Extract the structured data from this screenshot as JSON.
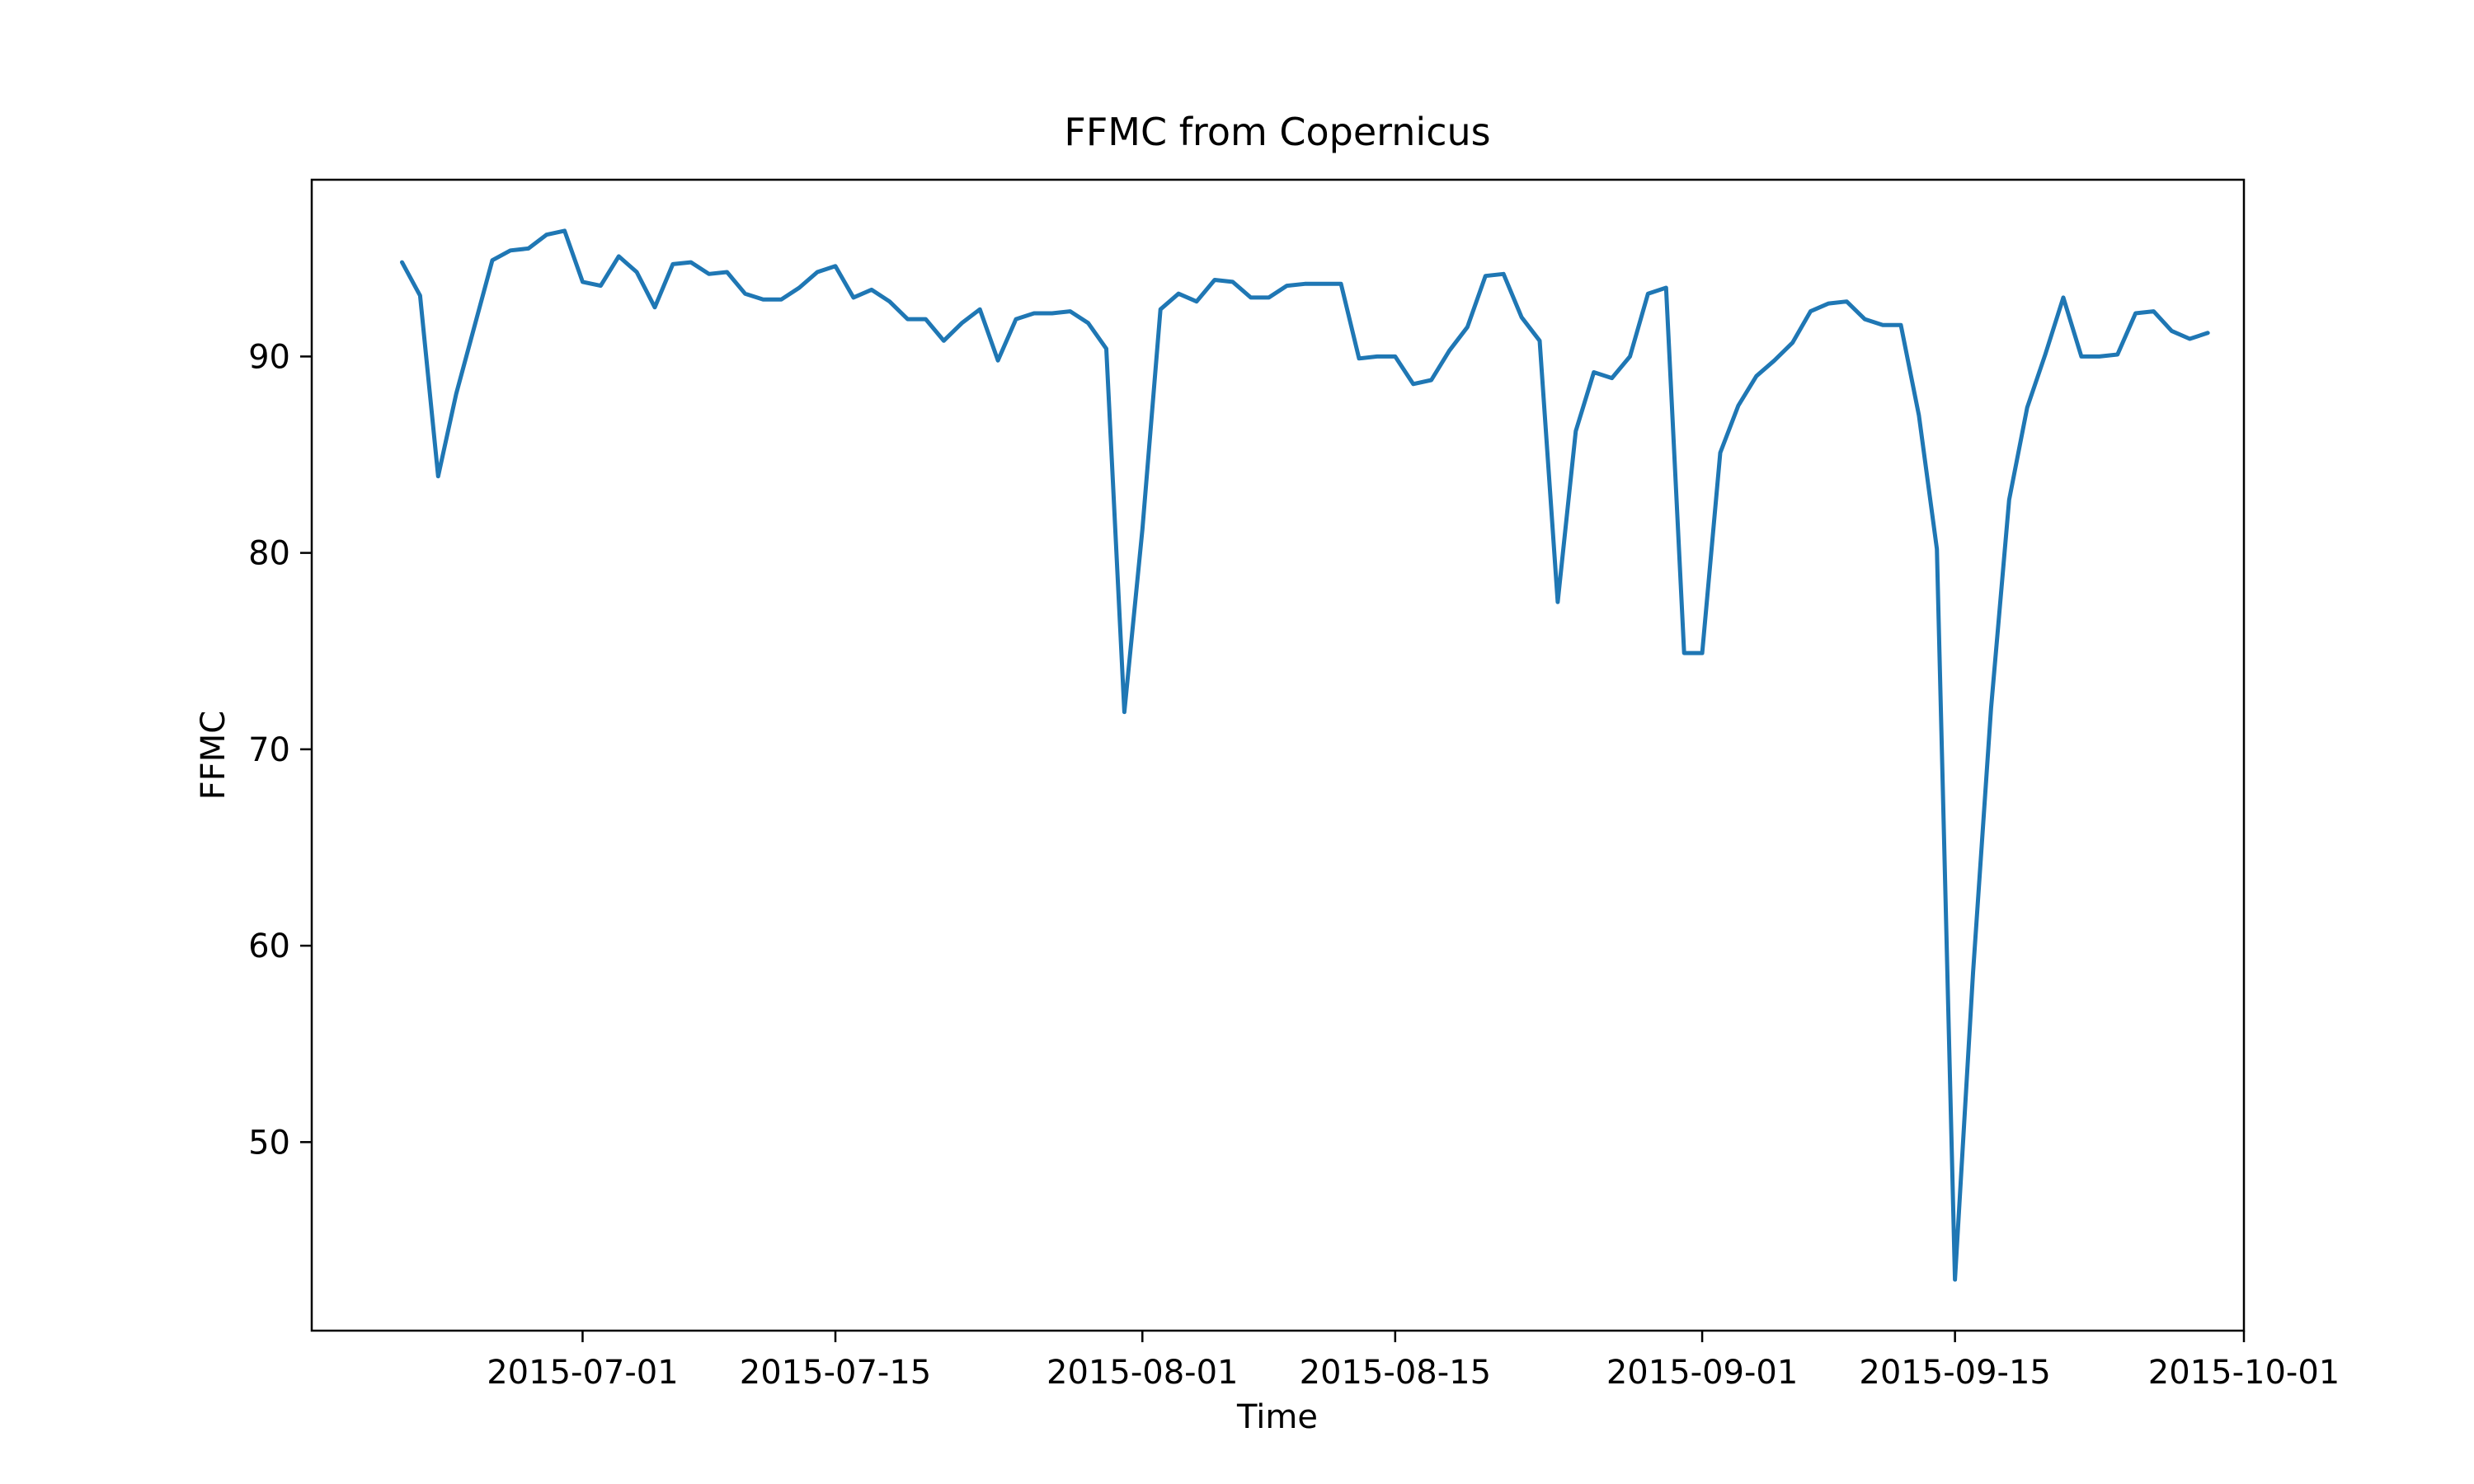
{
  "chart_data": {
    "type": "line",
    "title": "FFMC from Copernicus",
    "xlabel": "Time",
    "ylabel": "FFMC",
    "xlim": [
      "2015-06-16",
      "2015-10-01"
    ],
    "ylim": [
      40.4,
      99.0
    ],
    "grid": false,
    "line_color": "#1f77b4",
    "xticks": [
      "2015-07-01",
      "2015-07-15",
      "2015-08-01",
      "2015-08-15",
      "2015-09-01",
      "2015-09-15",
      "2015-10-01"
    ],
    "yticks": [
      50,
      60,
      70,
      80,
      90
    ],
    "x": [
      "2015-06-21",
      "2015-06-22",
      "2015-06-23",
      "2015-06-24",
      "2015-06-25",
      "2015-06-26",
      "2015-06-27",
      "2015-06-28",
      "2015-06-29",
      "2015-06-30",
      "2015-07-01",
      "2015-07-02",
      "2015-07-03",
      "2015-07-04",
      "2015-07-05",
      "2015-07-06",
      "2015-07-07",
      "2015-07-08",
      "2015-07-09",
      "2015-07-10",
      "2015-07-11",
      "2015-07-12",
      "2015-07-13",
      "2015-07-14",
      "2015-07-15",
      "2015-07-16",
      "2015-07-17",
      "2015-07-18",
      "2015-07-19",
      "2015-07-20",
      "2015-07-21",
      "2015-07-22",
      "2015-07-23",
      "2015-07-24",
      "2015-07-25",
      "2015-07-26",
      "2015-07-27",
      "2015-07-28",
      "2015-07-29",
      "2015-07-30",
      "2015-07-31",
      "2015-08-01",
      "2015-08-02",
      "2015-08-03",
      "2015-08-04",
      "2015-08-05",
      "2015-08-06",
      "2015-08-07",
      "2015-08-08",
      "2015-08-09",
      "2015-08-10",
      "2015-08-11",
      "2015-08-12",
      "2015-08-13",
      "2015-08-14",
      "2015-08-15",
      "2015-08-16",
      "2015-08-17",
      "2015-08-18",
      "2015-08-19",
      "2015-08-20",
      "2015-08-21",
      "2015-08-22",
      "2015-08-23",
      "2015-08-24",
      "2015-08-25",
      "2015-08-26",
      "2015-08-27",
      "2015-08-28",
      "2015-08-29",
      "2015-08-30",
      "2015-08-31",
      "2015-09-01",
      "2015-09-02",
      "2015-09-03",
      "2015-09-04",
      "2015-09-05",
      "2015-09-06",
      "2015-09-07",
      "2015-09-08",
      "2015-09-09",
      "2015-09-10",
      "2015-09-11",
      "2015-09-12",
      "2015-09-13",
      "2015-09-14",
      "2015-09-15",
      "2015-09-16",
      "2015-09-17",
      "2015-09-18",
      "2015-09-19",
      "2015-09-20",
      "2015-09-21",
      "2015-09-22",
      "2015-09-23",
      "2015-09-24",
      "2015-09-25",
      "2015-09-26",
      "2015-09-27",
      "2015-09-28",
      "2015-09-29"
    ],
    "y": [
      94.8,
      93.1,
      83.9,
      88.1,
      91.5,
      94.9,
      95.4,
      95.5,
      96.2,
      96.4,
      93.8,
      93.6,
      95.1,
      94.3,
      92.5,
      94.7,
      94.8,
      94.2,
      94.3,
      93.2,
      92.9,
      92.9,
      93.5,
      94.3,
      94.6,
      93.0,
      93.4,
      92.8,
      91.9,
      91.9,
      90.8,
      91.7,
      92.4,
      89.8,
      91.9,
      92.2,
      92.2,
      92.3,
      91.7,
      90.4,
      71.9,
      81.2,
      92.4,
      93.2,
      92.8,
      93.9,
      93.8,
      93.0,
      93.0,
      93.6,
      93.7,
      93.7,
      93.7,
      89.9,
      90.0,
      90.0,
      88.6,
      88.8,
      90.3,
      91.5,
      94.1,
      94.2,
      92.0,
      90.8,
      77.5,
      86.2,
      89.2,
      88.9,
      90.0,
      93.2,
      93.5,
      74.9,
      74.9,
      85.1,
      87.5,
      89.0,
      89.8,
      90.7,
      92.3,
      92.7,
      92.8,
      91.9,
      91.6,
      91.6,
      87.0,
      80.2,
      43.0,
      58.6,
      72.1,
      82.7,
      87.4,
      90.1,
      93.0,
      90.0,
      90.0,
      90.1,
      92.2,
      92.3,
      91.3,
      90.9,
      91.2
    ]
  }
}
